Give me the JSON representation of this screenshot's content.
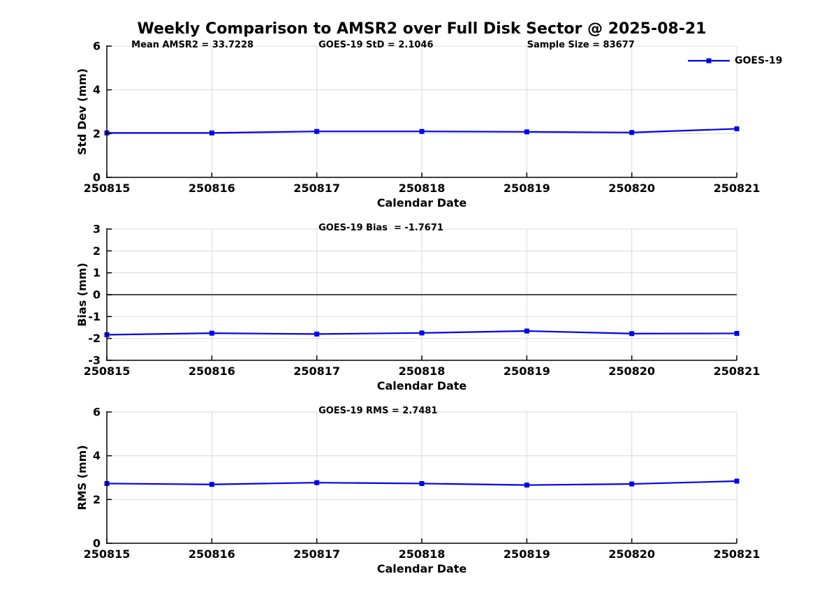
{
  "page_title": "Weekly Comparison to AMSR2 over Full Disk Sector @ 2025-08-21",
  "colors": {
    "line": "#0000ee",
    "grid": "#d9d9d9",
    "zero_line": "#4d4d4d",
    "axis": "#000000",
    "text": "#000000",
    "background": "#ffffff"
  },
  "chart_data": [
    {
      "type": "line",
      "name": "std-dev",
      "categories": [
        "250815",
        "250816",
        "250817",
        "250818",
        "250819",
        "250820",
        "250821"
      ],
      "series": [
        {
          "name": "GOES-19",
          "values": [
            2.03,
            2.03,
            2.1,
            2.1,
            2.08,
            2.05,
            2.22
          ]
        }
      ],
      "annotations": [
        "Mean AMSR2 = 33.7228",
        "GOES-19 StD = 2.1046",
        "Sample Size = 83677"
      ],
      "xlabel": "Calendar Date",
      "ylabel": "Std Dev (mm)",
      "ylim": [
        0,
        6
      ],
      "yticks": [
        0,
        2,
        4,
        6
      ],
      "grid": true,
      "zero_line": false,
      "legend": true,
      "legend_position": "top-right",
      "marker": "square"
    },
    {
      "type": "line",
      "name": "bias",
      "categories": [
        "250815",
        "250816",
        "250817",
        "250818",
        "250819",
        "250820",
        "250821"
      ],
      "series": [
        {
          "name": "GOES-19",
          "values": [
            -1.83,
            -1.76,
            -1.8,
            -1.75,
            -1.66,
            -1.78,
            -1.77
          ]
        }
      ],
      "annotations": [
        "GOES-19 Bias  = -1.7671"
      ],
      "xlabel": "Calendar Date",
      "ylabel": "Bias (mm)",
      "ylim": [
        -3,
        3
      ],
      "yticks": [
        -3,
        -2,
        -1,
        0,
        1,
        2,
        3
      ],
      "grid": true,
      "zero_line": true,
      "legend": false,
      "marker": "square"
    },
    {
      "type": "line",
      "name": "rms",
      "categories": [
        "250815",
        "250816",
        "250817",
        "250818",
        "250819",
        "250820",
        "250821"
      ],
      "series": [
        {
          "name": "GOES-19",
          "values": [
            2.73,
            2.69,
            2.77,
            2.73,
            2.66,
            2.71,
            2.84
          ]
        }
      ],
      "annotations": [
        "GOES-19 RMS = 2.7481"
      ],
      "xlabel": "Calendar Date",
      "ylabel": "RMS (mm)",
      "ylim": [
        0,
        6
      ],
      "yticks": [
        0,
        2,
        4,
        6
      ],
      "grid": true,
      "zero_line": false,
      "legend": false,
      "marker": "square"
    }
  ]
}
